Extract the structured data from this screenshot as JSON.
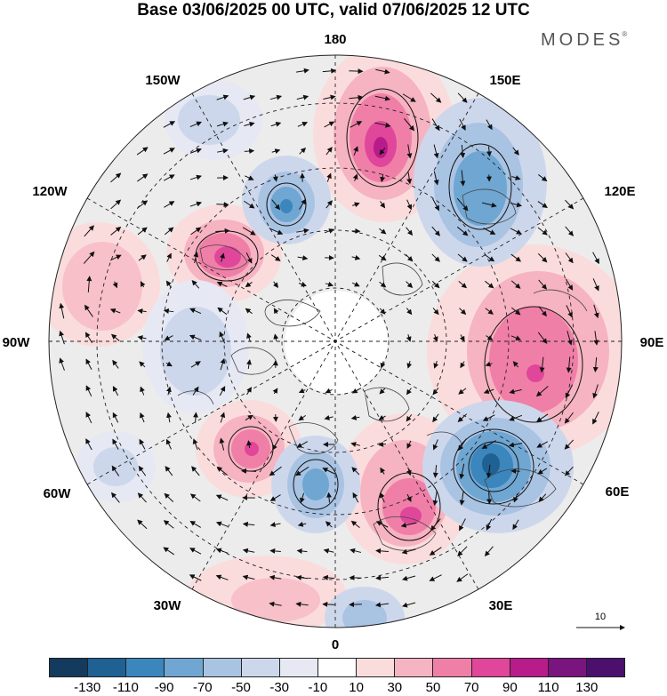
{
  "title": "Base 03/06/2025 00 UTC, valid 07/06/2025 12 UTC",
  "brand": {
    "name": "MODES",
    "mark": "®"
  },
  "longitude_labels": [
    "180",
    "150E",
    "120E",
    "90E",
    "60E",
    "30E",
    "0",
    "30W",
    "60W",
    "90W",
    "120W",
    "150W"
  ],
  "reference_vector": {
    "label": "10"
  },
  "colorbar": {
    "ticks": [
      "-130",
      "-110",
      "-90",
      "-70",
      "-50",
      "-30",
      "-10",
      "10",
      "30",
      "50",
      "70",
      "90",
      "110",
      "130"
    ],
    "colors": [
      "#143a5e",
      "#1f6192",
      "#3b86bd",
      "#6fa6d2",
      "#a9c3e3",
      "#cdd7ec",
      "#e6e8f3",
      "#ffffff",
      "#fbdcdc",
      "#f6b3c1",
      "#f07fa8",
      "#e0469a",
      "#b81c8a",
      "#7a1580",
      "#4b0f6e"
    ]
  },
  "anomaly_colors": {
    "negative": "#3b86bd",
    "positive": "#e0469a",
    "background": "#ececec"
  }
}
